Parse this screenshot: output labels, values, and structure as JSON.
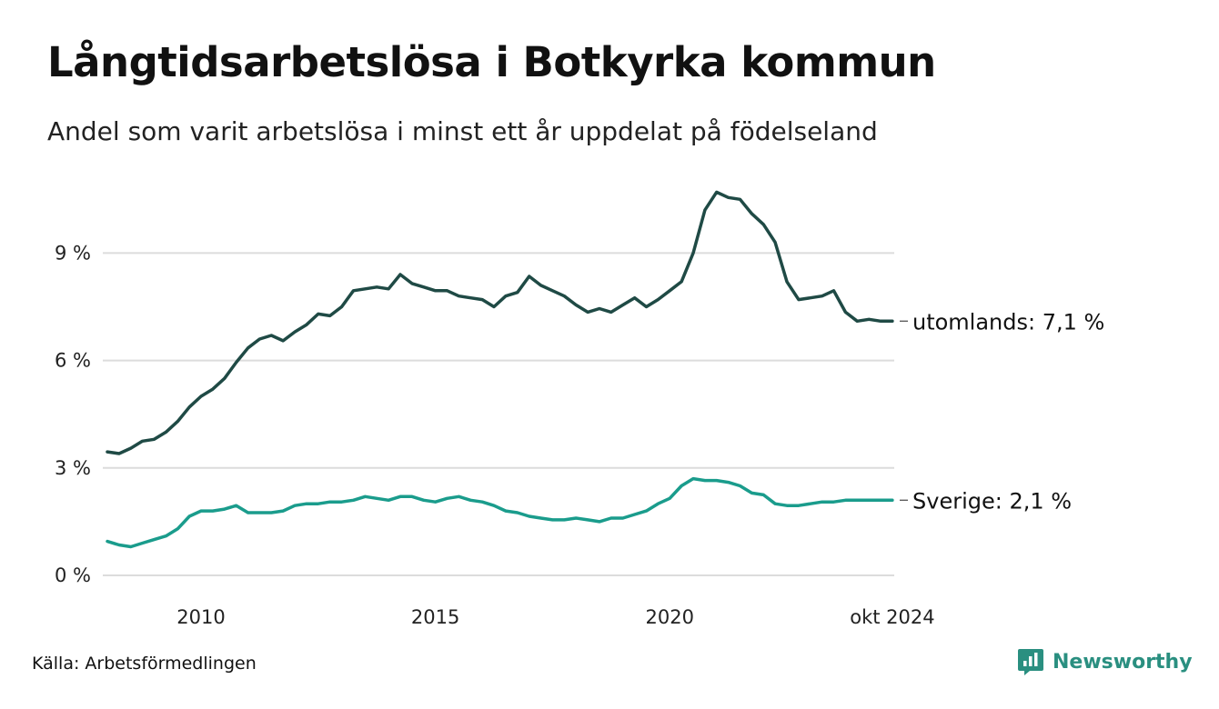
{
  "title": "Långtidsarbetslösa i Botkyrka kommun",
  "subtitle": "Andel som varit arbetslösa i minst ett år uppdelat på födelseland",
  "source": "Källa: Arbetsförmedlingen",
  "brand": {
    "name": "Newsworthy",
    "icon": "newsworthy-logo-icon",
    "color": "#2a8f80"
  },
  "chart_data": {
    "type": "line",
    "title": "Långtidsarbetslösa i Botkyrka kommun",
    "xlabel": "",
    "ylabel": "",
    "x_range": [
      2008.0,
      2024.79
    ],
    "ylim": [
      0,
      11
    ],
    "y_ticks": [
      0,
      3,
      6,
      9
    ],
    "y_tick_labels": [
      "0 %",
      "3 %",
      "6 %",
      "9 %"
    ],
    "x_ticks": [
      2010,
      2015,
      2020,
      2024.75
    ],
    "x_tick_labels": [
      "2010",
      "2015",
      "2020",
      "okt 2024"
    ],
    "grid": true,
    "series": [
      {
        "name": "utomlands",
        "label": "utomlands: 7,1 %",
        "color": "#1f4a45",
        "x": [
          2008.0,
          2008.25,
          2008.5,
          2008.75,
          2009.0,
          2009.25,
          2009.5,
          2009.75,
          2010.0,
          2010.25,
          2010.5,
          2010.75,
          2011.0,
          2011.25,
          2011.5,
          2011.75,
          2012.0,
          2012.25,
          2012.5,
          2012.75,
          2013.0,
          2013.25,
          2013.5,
          2013.75,
          2014.0,
          2014.25,
          2014.5,
          2014.75,
          2015.0,
          2015.25,
          2015.5,
          2015.75,
          2016.0,
          2016.25,
          2016.5,
          2016.75,
          2017.0,
          2017.25,
          2017.5,
          2017.75,
          2018.0,
          2018.25,
          2018.5,
          2018.75,
          2019.0,
          2019.25,
          2019.5,
          2019.75,
          2020.0,
          2020.25,
          2020.5,
          2020.75,
          2021.0,
          2021.25,
          2021.5,
          2021.75,
          2022.0,
          2022.25,
          2022.5,
          2022.75,
          2023.0,
          2023.25,
          2023.5,
          2023.75,
          2024.0,
          2024.25,
          2024.5,
          2024.75
        ],
        "values": [
          3.45,
          3.4,
          3.55,
          3.75,
          3.8,
          4.0,
          4.3,
          4.7,
          5.0,
          5.2,
          5.5,
          5.95,
          6.35,
          6.6,
          6.7,
          6.55,
          6.8,
          7.0,
          7.3,
          7.25,
          7.5,
          7.95,
          8.0,
          8.05,
          8.0,
          8.4,
          8.15,
          8.05,
          7.95,
          7.95,
          7.8,
          7.75,
          7.7,
          7.5,
          7.8,
          7.9,
          8.35,
          8.1,
          7.95,
          7.8,
          7.55,
          7.35,
          7.45,
          7.35,
          7.55,
          7.75,
          7.5,
          7.7,
          7.95,
          8.2,
          9.0,
          10.2,
          10.7,
          10.55,
          10.5,
          10.1,
          9.8,
          9.3,
          8.2,
          7.7,
          7.75,
          7.8,
          7.95,
          7.35,
          7.1,
          7.15,
          7.1,
          7.1
        ]
      },
      {
        "name": "Sverige",
        "label": "Sverige: 2,1 %",
        "color": "#1a9c8c",
        "x": [
          2008.0,
          2008.25,
          2008.5,
          2008.75,
          2009.0,
          2009.25,
          2009.5,
          2009.75,
          2010.0,
          2010.25,
          2010.5,
          2010.75,
          2011.0,
          2011.25,
          2011.5,
          2011.75,
          2012.0,
          2012.25,
          2012.5,
          2012.75,
          2013.0,
          2013.25,
          2013.5,
          2013.75,
          2014.0,
          2014.25,
          2014.5,
          2014.75,
          2015.0,
          2015.25,
          2015.5,
          2015.75,
          2016.0,
          2016.25,
          2016.5,
          2016.75,
          2017.0,
          2017.25,
          2017.5,
          2017.75,
          2018.0,
          2018.25,
          2018.5,
          2018.75,
          2019.0,
          2019.25,
          2019.5,
          2019.75,
          2020.0,
          2020.25,
          2020.5,
          2020.75,
          2021.0,
          2021.25,
          2021.5,
          2021.75,
          2022.0,
          2022.25,
          2022.5,
          2022.75,
          2023.0,
          2023.25,
          2023.5,
          2023.75,
          2024.0,
          2024.25,
          2024.5,
          2024.75
        ],
        "values": [
          0.95,
          0.85,
          0.8,
          0.9,
          1.0,
          1.1,
          1.3,
          1.65,
          1.8,
          1.8,
          1.85,
          1.95,
          1.75,
          1.75,
          1.75,
          1.8,
          1.95,
          2.0,
          2.0,
          2.05,
          2.05,
          2.1,
          2.2,
          2.15,
          2.1,
          2.2,
          2.2,
          2.1,
          2.05,
          2.15,
          2.2,
          2.1,
          2.05,
          1.95,
          1.8,
          1.75,
          1.65,
          1.6,
          1.55,
          1.55,
          1.6,
          1.55,
          1.5,
          1.6,
          1.6,
          1.7,
          1.8,
          2.0,
          2.15,
          2.5,
          2.7,
          2.65,
          2.65,
          2.6,
          2.5,
          2.3,
          2.25,
          2.0,
          1.95,
          1.95,
          2.0,
          2.05,
          2.05,
          2.1,
          2.1,
          2.1,
          2.1,
          2.1
        ]
      }
    ]
  }
}
